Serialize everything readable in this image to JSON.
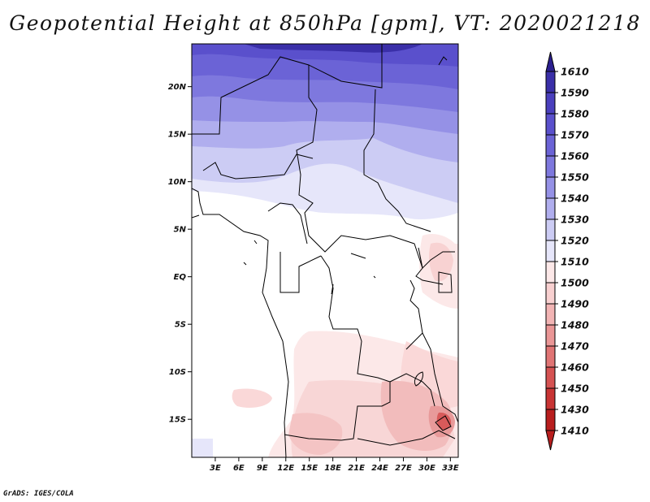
{
  "title": "Geopotential Height at 850hPa [gpm], VT: 2020021218",
  "footer": "GrADS: IGES/COLA",
  "map": {
    "lon_range": [
      0,
      34
    ],
    "lat_range": [
      -19,
      24.5
    ],
    "lat_labels": [
      "20N",
      "15N",
      "10N",
      "5N",
      "EQ",
      "5S",
      "10S",
      "15S"
    ],
    "lat_values": [
      20,
      15,
      10,
      5,
      0,
      -5,
      -10,
      -15
    ],
    "lon_labels": [
      "3E",
      "6E",
      "9E",
      "12E",
      "15E",
      "18E",
      "21E",
      "24E",
      "27E",
      "30E",
      "33E"
    ],
    "lon_values": [
      3,
      6,
      9,
      12,
      15,
      18,
      21,
      24,
      27,
      30,
      33
    ]
  },
  "colorbar": {
    "levels": [
      "1610",
      "1590",
      "1580",
      "1570",
      "1560",
      "1550",
      "1540",
      "1530",
      "1520",
      "1510",
      "1500",
      "1490",
      "1480",
      "1470",
      "1460",
      "1450",
      "1430",
      "1410"
    ],
    "colors": [
      "#2b1f8f",
      "#3a2fa8",
      "#4a3fbd",
      "#5a50cc",
      "#6b63d6",
      "#7e78de",
      "#9591e6",
      "#b0aeee",
      "#ccccf4",
      "#e6e6fa",
      "#fce8e8",
      "#f8d0d0",
      "#f2b4b4",
      "#ea9696",
      "#e07474",
      "#d55252",
      "#c83434",
      "#b81e1e"
    ]
  }
}
